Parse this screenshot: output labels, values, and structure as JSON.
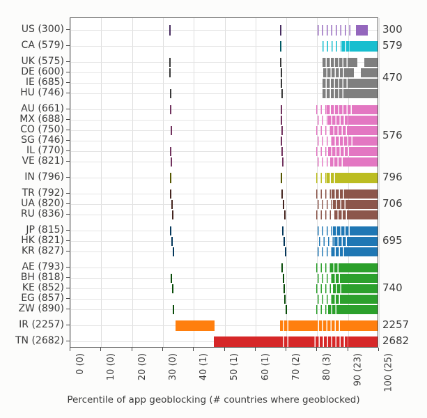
{
  "chart_data": {
    "type": "bar",
    "subtype": "horizontal-barcode-strips",
    "title": "",
    "xlabel": "Percentile of app geoblocking (# countries where geoblocked)",
    "x_range": [
      0,
      100
    ],
    "grid": true,
    "x_tick_labels": [
      "0 (0)",
      "10 (0)",
      "20 (0)",
      "30 (0)",
      "40 (1)",
      "50 (1)",
      "60 (1)",
      "70 (2)",
      "80 (3)",
      "90 (23)",
      "100 (25)"
    ],
    "segment_types_legend": {
      "tick": "isolated thin mark at percentile",
      "sparse": "scattered thin marks over range",
      "dense": "near-solid striped range",
      "solid": "solid filled range"
    },
    "groups": [
      {
        "name": "US",
        "color": "#9467bd",
        "count": "300",
        "rows": [
          {
            "label": "US (300)",
            "segments": [
              [
                "tick",
                32.3
              ],
              [
                "tick",
                68.3
              ],
              [
                "sparse",
                80.5,
                91.5
              ],
              [
                "solid",
                92.9,
                96.8
              ]
            ]
          }
        ]
      },
      {
        "name": "CA",
        "color": "#17becf",
        "count": "579",
        "rows": [
          {
            "label": "CA (579)",
            "segments": [
              [
                "tick",
                68.3
              ],
              [
                "sparse",
                82,
                88.5
              ],
              [
                "dense",
                88.5,
                91
              ],
              [
                "solid",
                91,
                100
              ]
            ]
          }
        ]
      },
      {
        "name": "UK-DE-IE-HU",
        "color": "#7f7f7f",
        "count": "470",
        "rows": [
          {
            "label": "UK (575)",
            "segments": [
              [
                "tick",
                32.3
              ],
              [
                "tick",
                68.3
              ],
              [
                "dense",
                82,
                90.5
              ],
              [
                "solid",
                90.5,
                93.5
              ],
              [
                "solid",
                95.6,
                100
              ]
            ]
          },
          {
            "label": "DE (600)",
            "segments": [
              [
                "tick",
                32.3
              ],
              [
                "tick",
                68.4
              ],
              [
                "dense",
                82.3,
                89.5
              ],
              [
                "solid",
                89.5,
                92.3
              ],
              [
                "solid",
                94.5,
                100
              ]
            ]
          },
          {
            "label": "IE (685)",
            "segments": [
              [
                "tick",
                68.5
              ],
              [
                "dense",
                82,
                91
              ],
              [
                "solid",
                91,
                100
              ]
            ]
          },
          {
            "label": "HU (746)",
            "segments": [
              [
                "tick",
                32.5
              ],
              [
                "tick",
                68.6
              ],
              [
                "dense",
                82,
                89.8
              ],
              [
                "solid",
                89.8,
                100
              ]
            ]
          }
        ]
      },
      {
        "name": "AU-MX-CO-SG-IL-VE",
        "color": "#e377c2",
        "count": "576",
        "rows": [
          {
            "label": "AU (661)",
            "segments": [
              [
                "tick",
                32.4
              ],
              [
                "tick",
                68.4
              ],
              [
                "sparse",
                80,
                83.5
              ],
              [
                "dense",
                83.5,
                92
              ],
              [
                "solid",
                92,
                100
              ]
            ]
          },
          {
            "label": "MX (688)",
            "segments": [
              [
                "tick",
                68.5
              ],
              [
                "sparse",
                80.5,
                84
              ],
              [
                "dense",
                84,
                90.5
              ],
              [
                "solid",
                90.5,
                100
              ]
            ]
          },
          {
            "label": "CO (750)",
            "segments": [
              [
                "tick",
                32.6
              ],
              [
                "tick",
                68.7
              ],
              [
                "sparse",
                80,
                84.5
              ],
              [
                "dense",
                84.5,
                91
              ],
              [
                "solid",
                91,
                100
              ]
            ]
          },
          {
            "label": "SG (746)",
            "segments": [
              [
                "tick",
                68.5
              ],
              [
                "sparse",
                80.5,
                85
              ],
              [
                "dense",
                85,
                92.5
              ],
              [
                "solid",
                92.5,
                100
              ]
            ]
          },
          {
            "label": "IL (770)",
            "segments": [
              [
                "tick",
                32.5
              ],
              [
                "tick",
                68.8
              ],
              [
                "sparse",
                80,
                84
              ],
              [
                "dense",
                84,
                91.5
              ],
              [
                "solid",
                91.5,
                100
              ]
            ]
          },
          {
            "label": "VE (821)",
            "segments": [
              [
                "tick",
                32.7
              ],
              [
                "tick",
                68.9
              ],
              [
                "sparse",
                80.5,
                84.5
              ],
              [
                "dense",
                84.5,
                89.5
              ],
              [
                "solid",
                89.5,
                100
              ]
            ]
          }
        ]
      },
      {
        "name": "IN",
        "color": "#bcbd22",
        "count": "796",
        "rows": [
          {
            "label": "IN (796)",
            "segments": [
              [
                "tick",
                32.4
              ],
              [
                "tick",
                68.5
              ],
              [
                "sparse",
                80,
                83.5
              ],
              [
                "dense",
                83.5,
                86.5
              ],
              [
                "solid",
                86.5,
                100
              ]
            ]
          }
        ]
      },
      {
        "name": "TR-UA-RU",
        "color": "#8c564b",
        "count": "706",
        "rows": [
          {
            "label": "TR (792)",
            "segments": [
              [
                "tick",
                32.4
              ],
              [
                "tick",
                68.8
              ],
              [
                "sparse",
                80,
                85
              ],
              [
                "dense",
                85,
                89.5
              ],
              [
                "solid",
                89.5,
                100
              ]
            ]
          },
          {
            "label": "UA (820)",
            "segments": [
              [
                "tick",
                32.8
              ],
              [
                "tick",
                69.2
              ],
              [
                "sparse",
                80.5,
                85.5
              ],
              [
                "dense",
                85.5,
                90.5
              ],
              [
                "solid",
                90.5,
                100
              ]
            ]
          },
          {
            "label": "RU (836)",
            "segments": [
              [
                "tick",
                33.2
              ],
              [
                "tick",
                69.6
              ],
              [
                "sparse",
                80,
                86
              ],
              [
                "dense",
                86,
                91
              ],
              [
                "solid",
                91,
                100
              ]
            ]
          }
        ]
      },
      {
        "name": "JP-HK-KR",
        "color": "#1f77b4",
        "count": "695",
        "rows": [
          {
            "label": "JP (815)",
            "segments": [
              [
                "tick",
                32.5
              ],
              [
                "tick",
                69
              ],
              [
                "sparse",
                80.5,
                85.5
              ],
              [
                "dense",
                85.5,
                91
              ],
              [
                "solid",
                91,
                100
              ]
            ]
          },
          {
            "label": "HK (821)",
            "segments": [
              [
                "tick",
                32.9
              ],
              [
                "tick",
                69.4
              ],
              [
                "sparse",
                81,
                86
              ],
              [
                "dense",
                86,
                90.5
              ],
              [
                "solid",
                90.5,
                100
              ]
            ]
          },
          {
            "label": "KR (827)",
            "segments": [
              [
                "tick",
                33.3
              ],
              [
                "tick",
                69.8
              ],
              [
                "sparse",
                80.5,
                85
              ],
              [
                "dense",
                85,
                89.5
              ],
              [
                "solid",
                89.5,
                100
              ]
            ]
          }
        ]
      },
      {
        "name": "AE-BH-KE-EG-ZW",
        "color": "#2ca02c",
        "count": "740",
        "rows": [
          {
            "label": "AE (793)",
            "segments": [
              [
                "tick",
                68.8
              ],
              [
                "sparse",
                80,
                84.5
              ],
              [
                "dense",
                84.5,
                88
              ],
              [
                "solid",
                88,
                100
              ]
            ]
          },
          {
            "label": "BH (818)",
            "segments": [
              [
                "tick",
                32.6
              ],
              [
                "tick",
                69.1
              ],
              [
                "sparse",
                80.5,
                85
              ],
              [
                "dense",
                85,
                88.5
              ],
              [
                "solid",
                88.5,
                100
              ]
            ]
          },
          {
            "label": "KE (852)",
            "segments": [
              [
                "tick",
                33
              ],
              [
                "tick",
                69.4
              ],
              [
                "sparse",
                80,
                85.5
              ],
              [
                "dense",
                85.5,
                89
              ],
              [
                "solid",
                89,
                100
              ]
            ]
          },
          {
            "label": "EG (857)",
            "segments": [
              [
                "tick",
                69.7
              ],
              [
                "sparse",
                80.5,
                85
              ],
              [
                "dense",
                85,
                88.5
              ],
              [
                "solid",
                88.5,
                100
              ]
            ]
          },
          {
            "label": "ZW (890)",
            "segments": [
              [
                "tick",
                33.4
              ],
              [
                "tick",
                70
              ],
              [
                "sparse",
                80,
                84
              ],
              [
                "dense",
                84,
                87.5
              ],
              [
                "solid",
                87.5,
                100
              ]
            ]
          }
        ]
      },
      {
        "name": "IR",
        "color": "#ff7f0e",
        "count": "2257",
        "rows": [
          {
            "label": "IR (2257)",
            "segments": [
              [
                "solid",
                34.3,
                47
              ],
              [
                "dense",
                68.3,
                71.3
              ],
              [
                "solid",
                71.3,
                79.5
              ],
              [
                "dense",
                79.5,
                88.5
              ],
              [
                "solid",
                88.5,
                100
              ]
            ]
          }
        ]
      },
      {
        "name": "TN",
        "color": "#d62728",
        "count": "2682",
        "rows": [
          {
            "label": "TN (2682)",
            "segments": [
              [
                "solid",
                46.8,
                68.3
              ],
              [
                "dense",
                68.3,
                71.3
              ],
              [
                "solid",
                71.3,
                78.5
              ],
              [
                "dense",
                78.5,
                90.5
              ],
              [
                "solid",
                90.5,
                100
              ]
            ]
          }
        ]
      }
    ]
  }
}
